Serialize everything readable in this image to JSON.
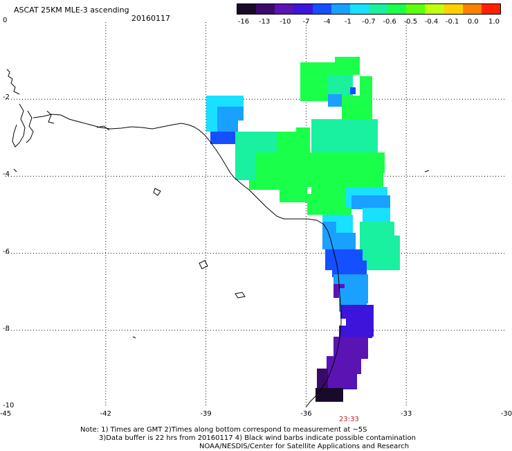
{
  "header": {
    "title": "ASCAT 25KM MLE-3 ascending",
    "date": "20160117"
  },
  "colorbar": {
    "labels": [
      "-16",
      "-13",
      "-10",
      "-7",
      "-4",
      "-1",
      "-0.7",
      "-0.6",
      "-0.5",
      "-0.4",
      "-0.1",
      "0.0",
      "1.0"
    ],
    "colors": [
      "#1a0a2a",
      "#3a0a6a",
      "#5a14b4",
      "#3c14dc",
      "#1450ff",
      "#1aa0ff",
      "#19e0ff",
      "#19f0a0",
      "#1aff4a",
      "#60ff10",
      "#c0ff10",
      "#ffd000",
      "#ff8000",
      "#ff2000"
    ]
  },
  "map": {
    "y_labels": [
      "0",
      "-2",
      "-4",
      "-6",
      "-8",
      "-10"
    ],
    "x_labels": [
      "-45",
      "-42",
      "-39",
      "-36",
      "-33",
      "-30"
    ],
    "lon_range": [
      -45,
      -30
    ],
    "lat_range": [
      -10,
      0
    ],
    "timestamp": "23:33"
  },
  "notes": {
    "line1": "Note: 1) Times are GMT 2)Times along bottom correspond to measurement at ~5S",
    "line2": "3)Data buffer is 22 hrs from 20160117 4) Black wind barbs indicate possible contamination",
    "line3": "NOAA/NESDIS/Center for Satellite Applications and Research"
  }
}
